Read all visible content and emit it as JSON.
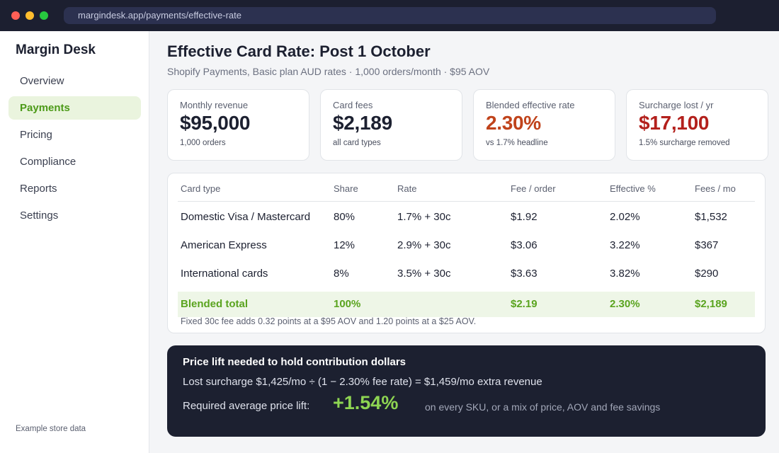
{
  "browser": {
    "url": "margindesk.app/payments/effective-rate"
  },
  "sidebar": {
    "brand": "Margin Desk",
    "items": [
      {
        "label": "Overview",
        "active": false
      },
      {
        "label": "Payments",
        "active": true
      },
      {
        "label": "Pricing",
        "active": false
      },
      {
        "label": "Compliance",
        "active": false
      },
      {
        "label": "Reports",
        "active": false
      },
      {
        "label": "Settings",
        "active": false
      }
    ],
    "footer": "Example store data"
  },
  "page": {
    "title": "Effective Card Rate: Post 1 October",
    "subtitle": "Shopify Payments, Basic plan AUD rates · 1,000 orders/month · $95 AOV"
  },
  "kpis": [
    {
      "label": "Monthly revenue",
      "value": "$95,000",
      "note": "1,000 orders"
    },
    {
      "label": "Card fees",
      "value": "$2,189",
      "note": "all card types"
    },
    {
      "label": "Blended effective rate",
      "value": "2.30%",
      "note": "vs 1.7% headline"
    },
    {
      "label": "Surcharge lost / yr",
      "value": "$17,100",
      "note": "1.5% surcharge removed"
    }
  ],
  "table": {
    "headers": [
      "Card type",
      "Share",
      "Rate",
      "Fee / order",
      "Effective %",
      "Fees / mo"
    ],
    "rows": [
      [
        "Domestic Visa / Mastercard",
        "80%",
        "1.7% + 30c",
        "$1.92",
        "2.02%",
        "$1,532"
      ],
      [
        "American Express",
        "12%",
        "2.9% + 30c",
        "$3.06",
        "3.22%",
        "$367"
      ],
      [
        "International cards",
        "8%",
        "3.5% + 30c",
        "$3.63",
        "3.82%",
        "$290"
      ]
    ],
    "total": [
      "Blended total",
      "100%",
      "",
      "$2.19",
      "2.30%",
      "$2,189"
    ],
    "footnote": "Fixed 30c fee adds 0.32 points at a $95 AOV and 1.20 points at a $25 AOV."
  },
  "lift": {
    "title": "Price lift needed to hold contribution dollars",
    "formula": "Lost surcharge $1,425/mo  ÷  (1 − 2.30% fee rate)  =  $1,459/mo extra revenue",
    "label": "Required average price lift:",
    "value": "+1.54%",
    "note": "on every SKU, or a mix of price, AOV and fee savings"
  },
  "colors": {
    "accent_green": "#5aa41f",
    "rate_orange": "#c0431b",
    "loss_red": "#b3201c",
    "dark_panel": "#1c2030"
  }
}
